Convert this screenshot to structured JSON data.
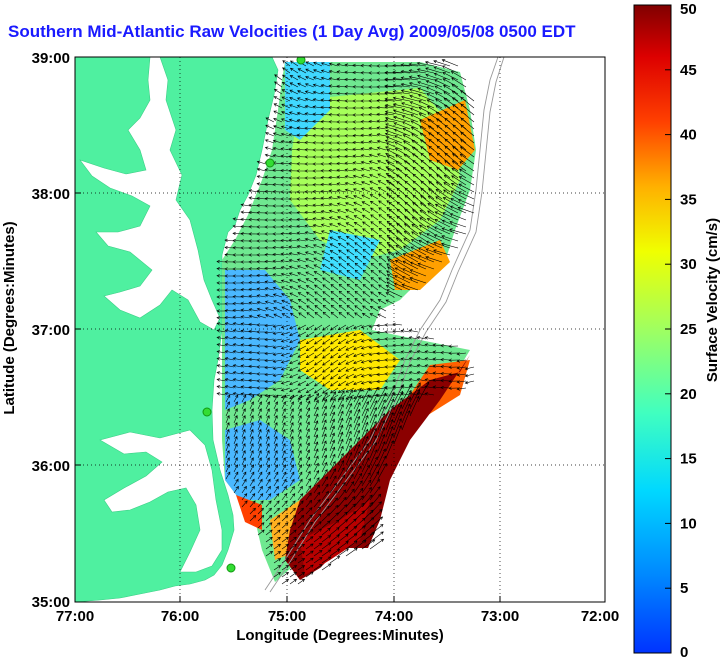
{
  "title": "Southern Mid-Atlantic Raw Velocities (1 Day Avg) 2009/05/08 0500 EDT",
  "map": {
    "xlabel": "Longitude (Degrees:Minutes)",
    "ylabel": "Latitude (Degrees:Minutes)",
    "x_ticks": [
      "77:00",
      "76:00",
      "75:00",
      "74:00",
      "73:00",
      "72:00"
    ],
    "y_ticks": [
      "39:00",
      "38:00",
      "37:00",
      "36:00",
      "35:00"
    ],
    "x_range": [
      -77,
      -72
    ],
    "y_range": [
      35,
      39
    ],
    "grid": "dotted",
    "land_color": "#4ff0a0",
    "water_color": "#ffffff",
    "station_color": "#33dd33",
    "stations": [
      {
        "name": "station-north",
        "lon": -75.1,
        "lat": 38.98
      },
      {
        "name": "station-delmarva",
        "lon": -75.1,
        "lat": 38.2
      },
      {
        "name": "station-outer-banks-north",
        "lon": -75.23,
        "lat": 36.17
      },
      {
        "name": "station-outer-banks-south",
        "lon": -75.45,
        "lat": 35.27
      }
    ]
  },
  "colorbar": {
    "label": "Surface Velocity (cm/s)",
    "min": 0,
    "max": 50,
    "ticks": [
      "0",
      "5",
      "10",
      "15",
      "20",
      "25",
      "30",
      "35",
      "40",
      "45",
      "50"
    ],
    "colormap": "jet"
  }
}
